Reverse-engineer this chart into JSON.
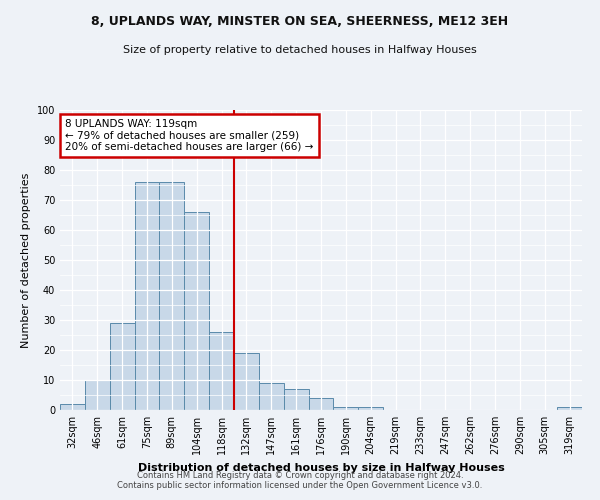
{
  "title1": "8, UPLANDS WAY, MINSTER ON SEA, SHEERNESS, ME12 3EH",
  "title2": "Size of property relative to detached houses in Halfway Houses",
  "xlabel": "Distribution of detached houses by size in Halfway Houses",
  "ylabel": "Number of detached properties",
  "categories": [
    "32sqm",
    "46sqm",
    "61sqm",
    "75sqm",
    "89sqm",
    "104sqm",
    "118sqm",
    "132sqm",
    "147sqm",
    "161sqm",
    "176sqm",
    "190sqm",
    "204sqm",
    "219sqm",
    "233sqm",
    "247sqm",
    "262sqm",
    "276sqm",
    "290sqm",
    "305sqm",
    "319sqm"
  ],
  "values": [
    2,
    10,
    29,
    76,
    76,
    66,
    26,
    19,
    9,
    7,
    4,
    1,
    1,
    0,
    0,
    0,
    0,
    0,
    0,
    0,
    1
  ],
  "bar_color": "#c8d8e8",
  "bar_edge_color": "#5a8aaa",
  "vline_x_index": 6,
  "vline_color": "#cc0000",
  "annotation_line1": "8 UPLANDS WAY: 119sqm",
  "annotation_line2": "← 79% of detached houses are smaller (259)",
  "annotation_line3": "20% of semi-detached houses are larger (66) →",
  "annotation_box_color": "#cc0000",
  "ylim": [
    0,
    100
  ],
  "yticks": [
    0,
    10,
    20,
    30,
    40,
    50,
    60,
    70,
    80,
    90,
    100
  ],
  "footer1": "Contains HM Land Registry data © Crown copyright and database right 2024.",
  "footer2": "Contains public sector information licensed under the Open Government Licence v3.0.",
  "bg_color": "#eef2f7"
}
